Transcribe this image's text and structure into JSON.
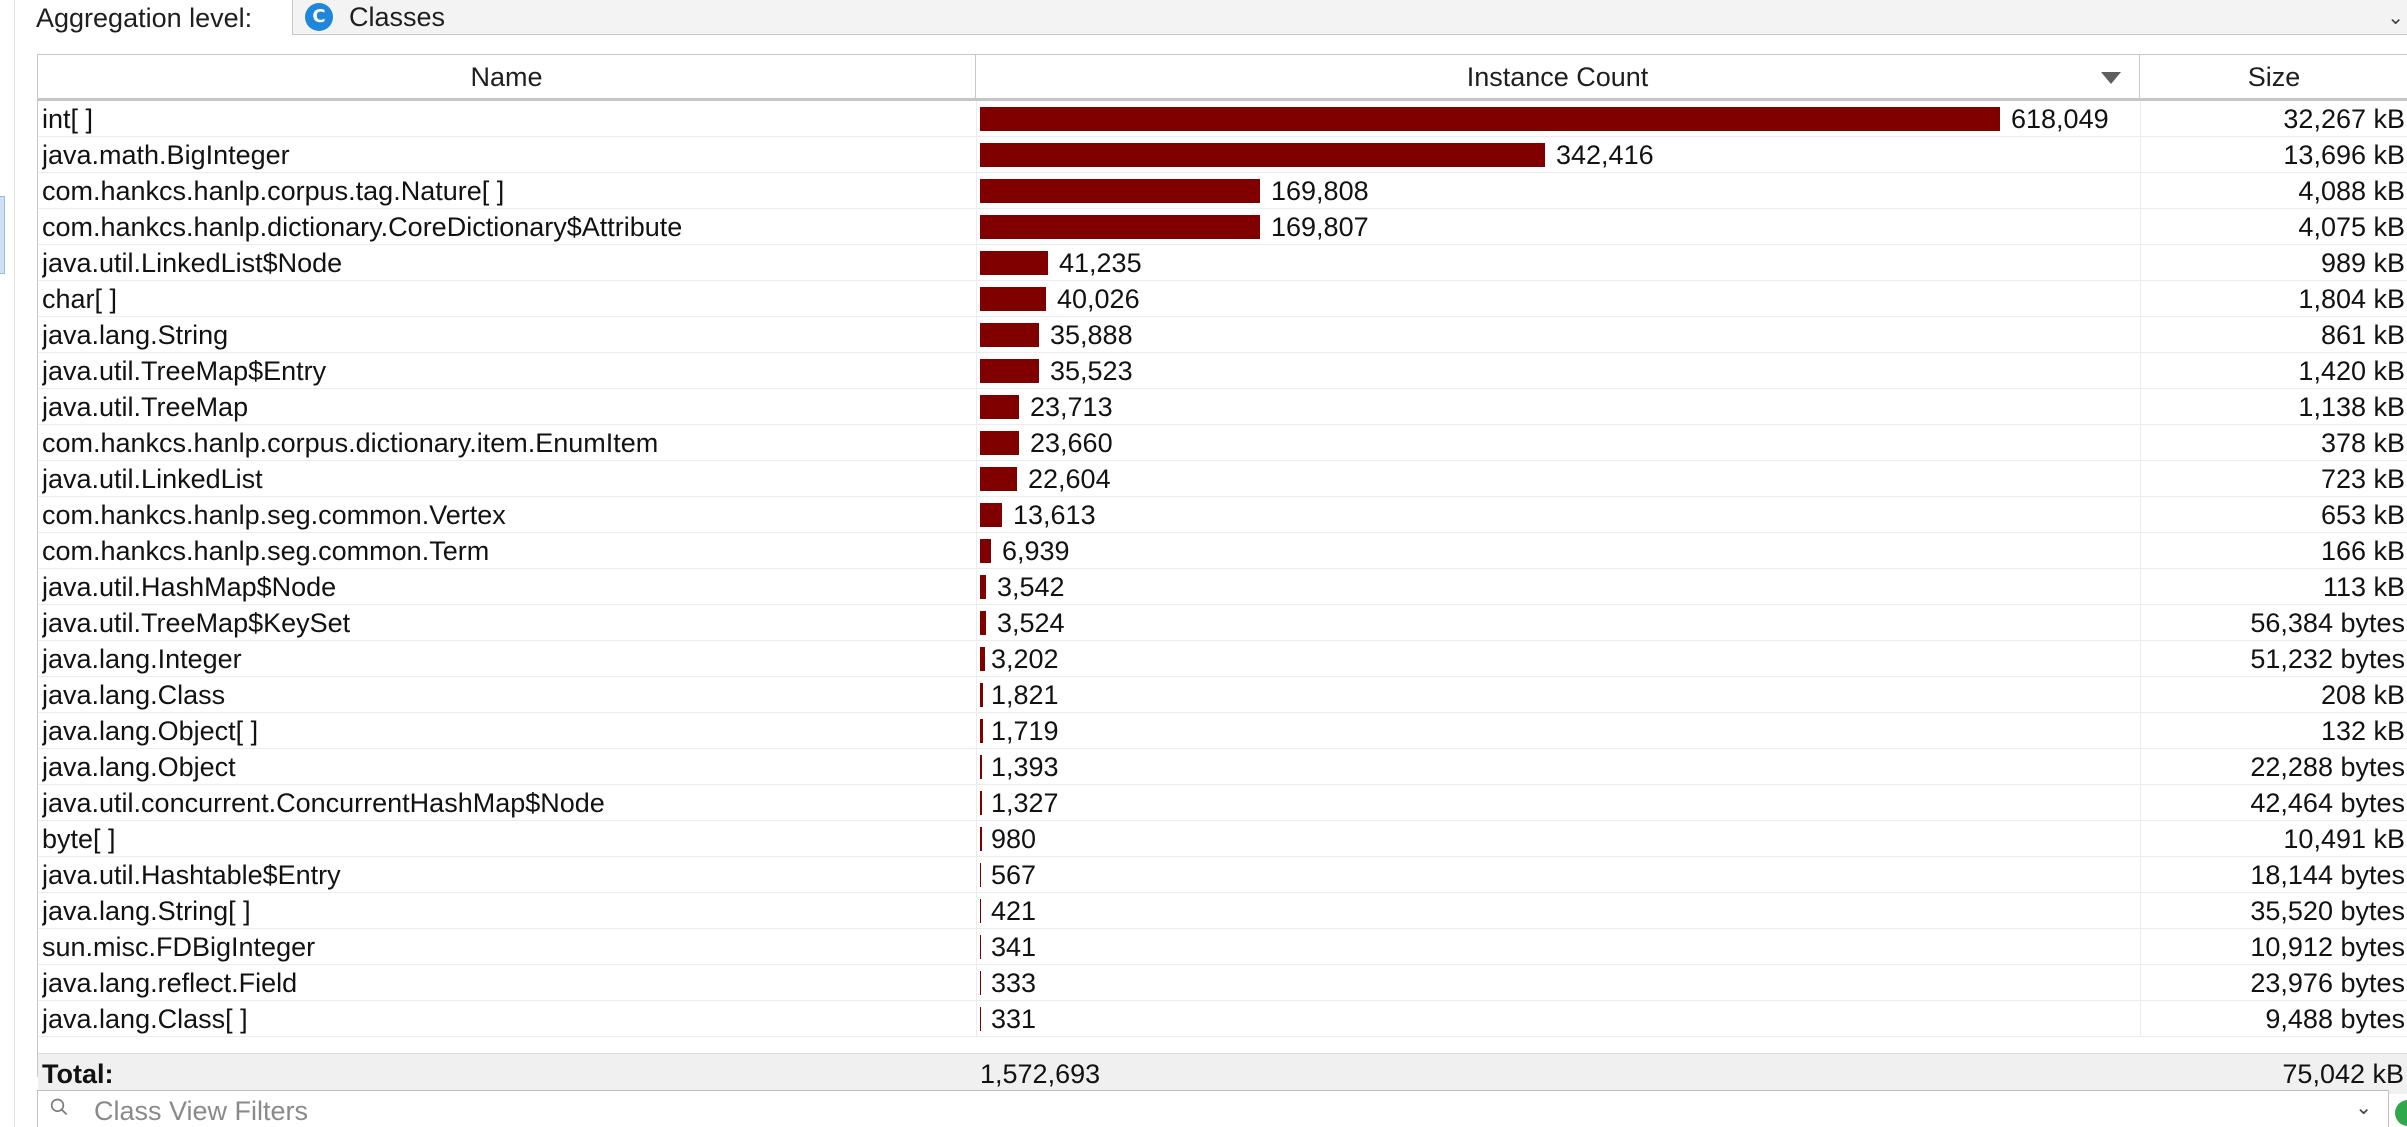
{
  "aggregation": {
    "label": "Aggregation level:",
    "selected": "Classes",
    "icon_letter": "C",
    "icon": "class-icon"
  },
  "columns": {
    "name": "Name",
    "instance_count": "Instance Count",
    "size": "Size",
    "sorted_by": "Instance Count",
    "sort_order": "descending"
  },
  "rows": [
    {
      "name": "int[ ]",
      "count": "618,049",
      "count_value": 618049,
      "size": "32,267 kB"
    },
    {
      "name": "java.math.BigInteger",
      "count": "342,416",
      "count_value": 342416,
      "size": "13,696 kB"
    },
    {
      "name": "com.hankcs.hanlp.corpus.tag.Nature[ ]",
      "count": "169,808",
      "count_value": 169808,
      "size": "4,088 kB"
    },
    {
      "name": "com.hankcs.hanlp.dictionary.CoreDictionary$Attribute",
      "count": "169,807",
      "count_value": 169807,
      "size": "4,075 kB"
    },
    {
      "name": "java.util.LinkedList$Node",
      "count": "41,235",
      "count_value": 41235,
      "size": "989 kB"
    },
    {
      "name": "char[ ]",
      "count": "40,026",
      "count_value": 40026,
      "size": "1,804 kB"
    },
    {
      "name": "java.lang.String",
      "count": "35,888",
      "count_value": 35888,
      "size": "861 kB"
    },
    {
      "name": "java.util.TreeMap$Entry",
      "count": "35,523",
      "count_value": 35523,
      "size": "1,420 kB"
    },
    {
      "name": "java.util.TreeMap",
      "count": "23,713",
      "count_value": 23713,
      "size": "1,138 kB"
    },
    {
      "name": "com.hankcs.hanlp.corpus.dictionary.item.EnumItem",
      "count": "23,660",
      "count_value": 23660,
      "size": "378 kB"
    },
    {
      "name": "java.util.LinkedList",
      "count": "22,604",
      "count_value": 22604,
      "size": "723 kB"
    },
    {
      "name": "com.hankcs.hanlp.seg.common.Vertex",
      "count": "13,613",
      "count_value": 13613,
      "size": "653 kB"
    },
    {
      "name": "com.hankcs.hanlp.seg.common.Term",
      "count": "6,939",
      "count_value": 6939,
      "size": "166 kB"
    },
    {
      "name": "java.util.HashMap$Node",
      "count": "3,542",
      "count_value": 3542,
      "size": "113 kB"
    },
    {
      "name": "java.util.TreeMap$KeySet",
      "count": "3,524",
      "count_value": 3524,
      "size": "56,384 bytes"
    },
    {
      "name": "java.lang.Integer",
      "count": "3,202",
      "count_value": 3202,
      "size": "51,232 bytes"
    },
    {
      "name": "java.lang.Class",
      "count": "1,821",
      "count_value": 1821,
      "size": "208 kB"
    },
    {
      "name": "java.lang.Object[ ]",
      "count": "1,719",
      "count_value": 1719,
      "size": "132 kB"
    },
    {
      "name": "java.lang.Object",
      "count": "1,393",
      "count_value": 1393,
      "size": "22,288 bytes"
    },
    {
      "name": "java.util.concurrent.ConcurrentHashMap$Node",
      "count": "1,327",
      "count_value": 1327,
      "size": "42,464 bytes"
    },
    {
      "name": "byte[ ]",
      "count": "980",
      "count_value": 980,
      "size": "10,491 kB"
    },
    {
      "name": "java.util.Hashtable$Entry",
      "count": "567",
      "count_value": 567,
      "size": "18,144 bytes"
    },
    {
      "name": "java.lang.String[ ]",
      "count": "421",
      "count_value": 421,
      "size": "35,520 bytes"
    },
    {
      "name": "sun.misc.FDBigInteger",
      "count": "341",
      "count_value": 341,
      "size": "10,912 bytes"
    },
    {
      "name": "java.lang.reflect.Field",
      "count": "333",
      "count_value": 333,
      "size": "23,976 bytes"
    },
    {
      "name": "java.lang.Class[ ]",
      "count": "331",
      "count_value": 331,
      "size": "9,488 bytes"
    }
  ],
  "total": {
    "label": "Total:",
    "count": "1,572,693",
    "size": "75,042 kB"
  },
  "filter": {
    "placeholder": "Class View Filters",
    "icon": "search-filter-icon"
  },
  "colors": {
    "bar": "#800000",
    "combo_icon": "#1f86d9",
    "status_dot": "#2ea84a"
  }
}
